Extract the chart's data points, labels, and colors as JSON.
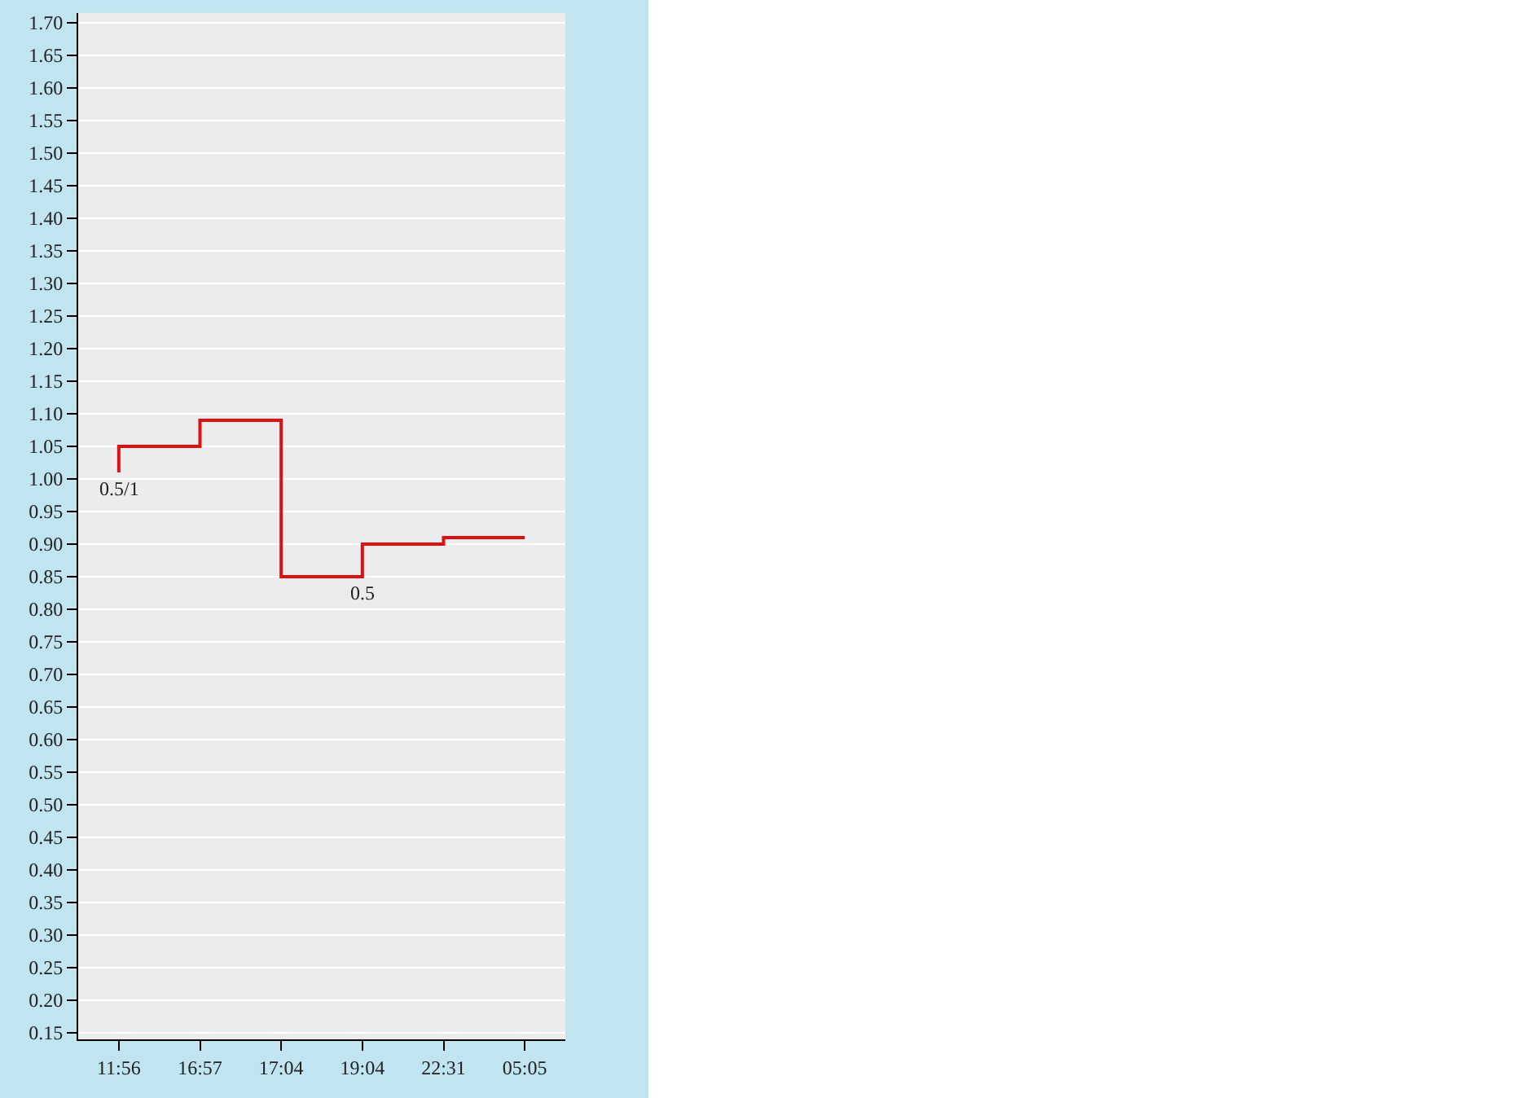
{
  "chart_data": {
    "type": "step",
    "categories": [
      "11:56",
      "16:57",
      "17:04",
      "19:04",
      "22:31",
      "05:05"
    ],
    "series": [
      {
        "color": "#dd1111",
        "values": [
          1.01,
          1.05,
          1.09,
          0.85,
          0.9,
          0.91
        ]
      }
    ],
    "ylim": [
      0.14,
      1.715
    ],
    "yticks": [
      {
        "value": 0.15,
        "label": "0.15"
      },
      {
        "value": 0.2,
        "label": "0.20"
      },
      {
        "value": 0.25,
        "label": "0.25"
      },
      {
        "value": 0.3,
        "label": "0.30"
      },
      {
        "value": 0.35,
        "label": "0.35"
      },
      {
        "value": 0.4,
        "label": "0.40"
      },
      {
        "value": 0.45,
        "label": "0.45"
      },
      {
        "value": 0.5,
        "label": "0.50"
      },
      {
        "value": 0.55,
        "label": "0.55"
      },
      {
        "value": 0.6,
        "label": "0.60"
      },
      {
        "value": 0.65,
        "label": "0.65"
      },
      {
        "value": 0.7,
        "label": "0.70"
      },
      {
        "value": 0.75,
        "label": "0.75"
      },
      {
        "value": 0.8,
        "label": "0.80"
      },
      {
        "value": 0.85,
        "label": "0.85"
      },
      {
        "value": 0.9,
        "label": "0.90"
      },
      {
        "value": 0.95,
        "label": "0.95"
      },
      {
        "value": 1.0,
        "label": "1.00"
      },
      {
        "value": 1.05,
        "label": "1.05"
      },
      {
        "value": 1.1,
        "label": "1.10"
      },
      {
        "value": 1.15,
        "label": "1.15"
      },
      {
        "value": 1.2,
        "label": "1.20"
      },
      {
        "value": 1.25,
        "label": "1.25"
      },
      {
        "value": 1.3,
        "label": "1.30"
      },
      {
        "value": 1.35,
        "label": "1.35"
      },
      {
        "value": 1.4,
        "label": "1.40"
      },
      {
        "value": 1.45,
        "label": "1.45"
      },
      {
        "value": 1.5,
        "label": "1.50"
      },
      {
        "value": 1.55,
        "label": "1.55"
      },
      {
        "value": 1.6,
        "label": "1.60"
      },
      {
        "value": 1.65,
        "label": "1.65"
      },
      {
        "value": 1.7,
        "label": "1.70"
      }
    ],
    "annotations": [
      {
        "text": "0.5/1",
        "x": "11:56",
        "y": 1.01
      },
      {
        "text": "0.5",
        "x": "19:04",
        "y": 0.85
      }
    ],
    "grid": "y",
    "marker": "none",
    "line_style": "solid"
  }
}
